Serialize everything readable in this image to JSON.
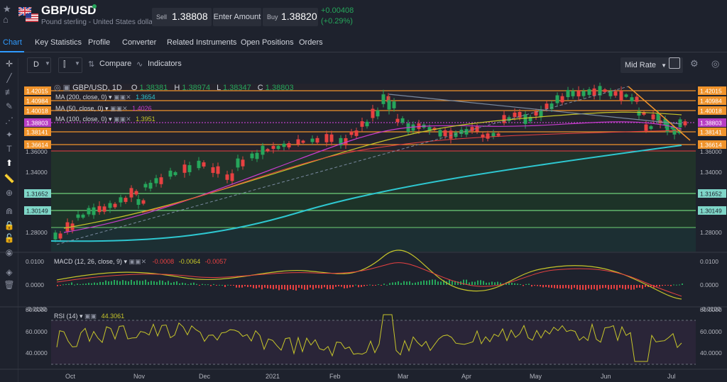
{
  "header": {
    "symbol": "GBP/USD",
    "description": "Pound sterling - United States dollar",
    "sell_label": "Sell",
    "sell_price": "1.38808",
    "amount_label": "Enter Amount",
    "buy_label": "Buy",
    "buy_price": "1.38820",
    "change_abs": "+0.00408",
    "change_pct": "(+0.29%)",
    "icons": [
      "star-icon",
      "alert-icon",
      "flag-icon"
    ]
  },
  "tabs": [
    {
      "label": "Chart",
      "active": true
    },
    {
      "label": "Key Statistics"
    },
    {
      "label": "Profile"
    },
    {
      "label": "Converter"
    },
    {
      "label": "Related Instruments"
    },
    {
      "label": "Open Positions"
    },
    {
      "label": "Orders"
    }
  ],
  "toolbar": {
    "interval": "D",
    "compare": "Compare",
    "indicators": "Indicators",
    "price_type": "Mid Rate"
  },
  "chart": {
    "legend_title": "GBP/USD, 1D",
    "o_label": "O",
    "o_val": "1.38381",
    "h_label": "H",
    "h_val": "1.38974",
    "l_label": "L",
    "l_val": "1.38347",
    "c_label": "C",
    "c_val": "1.38803",
    "ma200_label": "MA (200, close, 0)",
    "ma200_val": "1.3654",
    "ma50_label": "MA (50, close, 0)",
    "ma50_val": "1.4026",
    "ma100_label": "MA (100, close, 0)",
    "ma100_val": "1.3951",
    "macd_label": "MACD (12, 26, close, 9)",
    "macd_hist": "-0.0008",
    "macd_line": "-0.0064",
    "macd_signal": "-0.0057",
    "rsi_label": "RSI (14)",
    "rsi_val": "44.3061",
    "colors": {
      "up": "#26a65b",
      "down": "#e84141",
      "ma200": "#2ec7d0",
      "ma50": "#c93ccf",
      "ma100": "#c6c52a",
      "orange": "#f0932b",
      "macd": "#c6c52a",
      "rsi": "#c6c52a"
    }
  },
  "price_axis": {
    "left_tags": [
      "1.42015",
      "1.40984",
      "1.40018",
      "1.38803",
      "1.38141",
      "1.36614",
      "1.31652",
      "1.30149"
    ],
    "right_tags": [
      "1.42015",
      "1.40984",
      "1.40018",
      "1.38803",
      "1.38141",
      "1.36614",
      "1.31652",
      "1.30149"
    ],
    "ticks": [
      "1.36000",
      "1.34000",
      "1.28000"
    ]
  },
  "macd_axis": [
    "0.0100",
    "0.0000",
    "-0.0100"
  ],
  "rsi_axis": [
    "80.0000",
    "60.0000",
    "40.0000"
  ],
  "time_axis": [
    "Oct",
    "Nov",
    "Dec",
    "2021",
    "Feb",
    "Mar",
    "Apr",
    "May",
    "Jun",
    "Jul"
  ]
}
